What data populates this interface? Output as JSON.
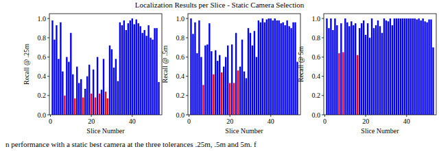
{
  "title": "Localization Results per Slice - Static Camera Selection",
  "caption": "n performance with a static best camera at the three tolerances .25m, .5m and 5m. f",
  "chart_data": [
    {
      "type": "bar",
      "xlabel": "Slice Number",
      "ylabel": "Recall @ .25m",
      "x": [
        1,
        2,
        3,
        4,
        5,
        6,
        7,
        8,
        9,
        10,
        11,
        12,
        13,
        14,
        15,
        16,
        17,
        18,
        19,
        20,
        21,
        22,
        23,
        24,
        25,
        26,
        27,
        28,
        29,
        30,
        31,
        32,
        33,
        34,
        35,
        36,
        37,
        38,
        39,
        40,
        41,
        42,
        43,
        44,
        45,
        46,
        47,
        48,
        49,
        50,
        51,
        52,
        53
      ],
      "values": [
        0.98,
        0.78,
        0.93,
        0.58,
        0.96,
        0.45,
        0.2,
        0.6,
        0.55,
        0.85,
        0.42,
        0.17,
        0.5,
        0.33,
        0.37,
        0.18,
        0.27,
        0.4,
        0.52,
        0.22,
        0.47,
        0.18,
        0.6,
        0.22,
        0.26,
        0.58,
        0.24,
        0.17,
        0.72,
        0.68,
        0.49,
        0.58,
        0.35,
        0.96,
        0.93,
        0.98,
        0.88,
        0.95,
        0.98,
        1.0,
        0.94,
        0.99,
        0.95,
        0.92,
        0.85,
        0.88,
        0.82,
        0.93,
        0.8,
        0.78,
        0.9,
        0.9,
        0.34
      ],
      "colors": [
        "#0000ff",
        "#0000ff",
        "#0000ff",
        "#0000ff",
        "#0000ff",
        "#0000ff",
        "#ff0000",
        "#0000ff",
        "#0000ff",
        "#0000ff",
        "#0000ff",
        "#ff0000",
        "#0000ff",
        "#0000ff",
        "#0000ff",
        "#ff0000",
        "#0000ff",
        "#0000ff",
        "#0000ff",
        "#ff0000",
        "#0000ff",
        "#ff0000",
        "#0000ff",
        "#ff0000",
        "#0000ff",
        "#0000ff",
        "#ff0000",
        "#ff0000",
        "#0000ff",
        "#0000ff",
        "#0000ff",
        "#0000ff",
        "#0000ff",
        "#0000ff",
        "#0000ff",
        "#0000ff",
        "#0000ff",
        "#0000ff",
        "#0000ff",
        "#0000ff",
        "#0000ff",
        "#0000ff",
        "#0000ff",
        "#0000ff",
        "#0000ff",
        "#0000ff",
        "#0000ff",
        "#0000ff",
        "#0000ff",
        "#0000ff",
        "#0000ff",
        "#0000ff",
        "#0000ff"
      ],
      "xlim": [
        -0.5,
        54.5
      ],
      "xticks": [
        0,
        20,
        40
      ],
      "ylim": [
        0,
        1.05
      ],
      "yticks": [
        {
          "value": 0,
          "label": "0.0"
        },
        0.2,
        0.4,
        0.6,
        0.8,
        {
          "value": 1,
          "label": "1.0"
        }
      ]
    },
    {
      "type": "bar",
      "xlabel": "Slice Number",
      "ylabel": "Recall @ .5m",
      "x": [
        1,
        2,
        3,
        4,
        5,
        6,
        7,
        8,
        9,
        10,
        11,
        12,
        13,
        14,
        15,
        16,
        17,
        18,
        19,
        20,
        21,
        22,
        23,
        24,
        25,
        26,
        27,
        28,
        29,
        30,
        31,
        32,
        33,
        34,
        35,
        36,
        37,
        38,
        39,
        40,
        41,
        42,
        43,
        44,
        45,
        46,
        47,
        48,
        49,
        50,
        51,
        52,
        53
      ],
      "values": [
        1.0,
        0.84,
        0.96,
        0.64,
        0.98,
        0.6,
        0.31,
        0.72,
        0.73,
        0.95,
        0.66,
        0.42,
        0.67,
        0.56,
        0.62,
        0.44,
        0.5,
        0.6,
        0.72,
        0.33,
        0.73,
        0.33,
        0.85,
        0.46,
        0.5,
        0.78,
        0.45,
        0.38,
        0.9,
        0.85,
        0.72,
        0.87,
        0.6,
        0.98,
        0.96,
        1.0,
        0.96,
        0.99,
        1.0,
        1.0,
        0.98,
        1.0,
        0.98,
        0.98,
        0.95,
        0.96,
        0.93,
        0.98,
        0.92,
        0.9,
        0.96,
        0.96,
        0.55
      ],
      "colors": [
        "#0000ff",
        "#0000ff",
        "#0000ff",
        "#0000ff",
        "#0000ff",
        "#0000ff",
        "#ff0000",
        "#0000ff",
        "#0000ff",
        "#0000ff",
        "#0000ff",
        "#ff0000",
        "#0000ff",
        "#0000ff",
        "#0000ff",
        "#ff0000",
        "#0000ff",
        "#0000ff",
        "#0000ff",
        "#ff0000",
        "#0000ff",
        "#ff0000",
        "#0000ff",
        "#ff0000",
        "#0000ff",
        "#0000ff",
        "#0000ff",
        "#0000ff",
        "#0000ff",
        "#0000ff",
        "#0000ff",
        "#0000ff",
        "#0000ff",
        "#0000ff",
        "#0000ff",
        "#0000ff",
        "#0000ff",
        "#0000ff",
        "#0000ff",
        "#0000ff",
        "#0000ff",
        "#0000ff",
        "#0000ff",
        "#0000ff",
        "#0000ff",
        "#0000ff",
        "#0000ff",
        "#0000ff",
        "#0000ff",
        "#0000ff",
        "#0000ff",
        "#0000ff",
        "#0000ff"
      ],
      "xlim": [
        -0.5,
        54.5
      ],
      "xticks": [
        0,
        20,
        40
      ],
      "ylim": [
        0,
        1.05
      ],
      "yticks": [
        {
          "value": 0,
          "label": "0.0"
        },
        0.2,
        0.4,
        0.6,
        0.8,
        {
          "value": 1,
          "label": "1.0"
        }
      ]
    },
    {
      "type": "bar",
      "xlabel": "Slice Number",
      "ylabel": "Recall @ 5m",
      "x": [
        1,
        2,
        3,
        4,
        5,
        6,
        7,
        8,
        9,
        10,
        11,
        12,
        13,
        14,
        15,
        16,
        17,
        18,
        19,
        20,
        21,
        22,
        23,
        24,
        25,
        26,
        27,
        28,
        29,
        30,
        31,
        32,
        33,
        34,
        35,
        36,
        37,
        38,
        39,
        40,
        41,
        42,
        43,
        44,
        45,
        46,
        47,
        48,
        49,
        50,
        51,
        52,
        53
      ],
      "values": [
        1.0,
        0.9,
        1.0,
        0.88,
        1.0,
        0.93,
        0.64,
        0.95,
        0.65,
        1.0,
        0.96,
        0.92,
        0.97,
        0.93,
        0.95,
        0.62,
        0.9,
        0.95,
        0.98,
        0.83,
        0.95,
        0.8,
        1.0,
        0.9,
        0.93,
        0.98,
        0.92,
        0.85,
        1.0,
        0.98,
        0.97,
        1.0,
        0.93,
        1.0,
        1.0,
        1.0,
        1.0,
        1.0,
        1.0,
        1.0,
        1.0,
        1.0,
        1.0,
        1.0,
        0.99,
        1.0,
        0.98,
        1.0,
        0.97,
        0.96,
        0.99,
        0.99,
        0.7
      ],
      "colors": [
        "#0000ff",
        "#0000ff",
        "#0000ff",
        "#0000ff",
        "#0000ff",
        "#0000ff",
        "#ff0000",
        "#0000ff",
        "#ff0000",
        "#0000ff",
        "#0000ff",
        "#0000ff",
        "#0000ff",
        "#0000ff",
        "#0000ff",
        "#ff0000",
        "#0000ff",
        "#0000ff",
        "#0000ff",
        "#0000ff",
        "#0000ff",
        "#0000ff",
        "#0000ff",
        "#0000ff",
        "#0000ff",
        "#0000ff",
        "#0000ff",
        "#0000ff",
        "#0000ff",
        "#0000ff",
        "#0000ff",
        "#0000ff",
        "#0000ff",
        "#0000ff",
        "#0000ff",
        "#0000ff",
        "#0000ff",
        "#0000ff",
        "#0000ff",
        "#0000ff",
        "#0000ff",
        "#0000ff",
        "#0000ff",
        "#0000ff",
        "#0000ff",
        "#0000ff",
        "#0000ff",
        "#0000ff",
        "#0000ff",
        "#0000ff",
        "#0000ff",
        "#0000ff",
        "#0000ff"
      ],
      "xlim": [
        -0.5,
        54.5
      ],
      "xticks": [
        0,
        20,
        40
      ],
      "ylim": [
        0,
        1.05
      ],
      "yticks": [
        {
          "value": 0,
          "label": "0.0"
        },
        0.2,
        0.4,
        0.6,
        0.8,
        {
          "value": 1,
          "label": "1.0"
        }
      ]
    }
  ]
}
